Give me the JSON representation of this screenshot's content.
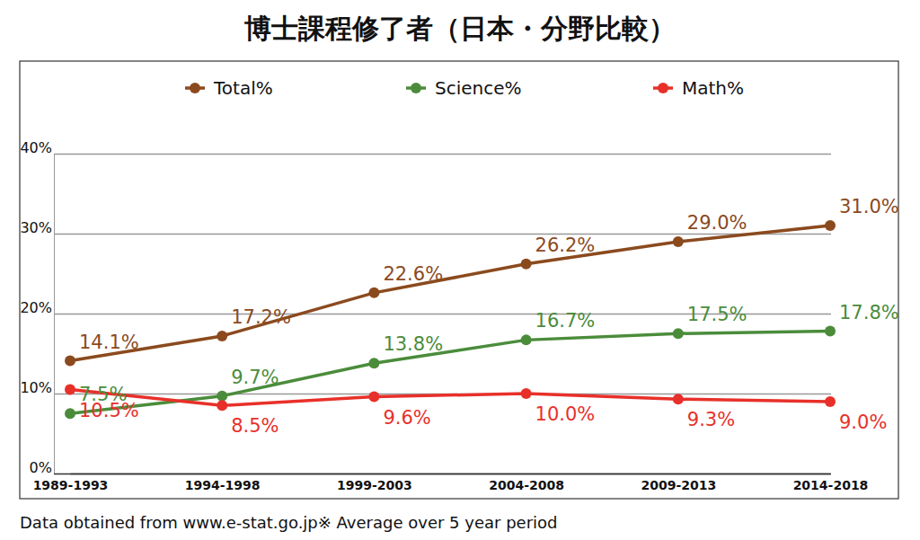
{
  "chart_data": {
    "type": "line",
    "title": "博士課程修了者（日本・分野比較）",
    "categories": [
      "1989-1993",
      "1994-1998",
      "1999-2003",
      "2004-2008",
      "2009-2013",
      "2014-2018"
    ],
    "series": [
      {
        "name": "Total%",
        "color": "#8b4a1e",
        "values": [
          14.1,
          17.2,
          22.6,
          26.2,
          29.0,
          31.0
        ],
        "value_labels": [
          "14.1%",
          "17.2%",
          "22.6%",
          "26.2%",
          "29.0%",
          "31.0%"
        ]
      },
      {
        "name": "Science%",
        "color": "#4b8c3b",
        "values": [
          7.5,
          9.7,
          13.8,
          16.7,
          17.5,
          17.8
        ],
        "value_labels": [
          "7.5%",
          "9.7%",
          "13.8%",
          "16.7%",
          "17.5%",
          "17.8%"
        ]
      },
      {
        "name": "Math%",
        "color": "#e8302a",
        "values": [
          10.5,
          8.5,
          9.6,
          10.0,
          9.3,
          9.0
        ],
        "value_labels": [
          "10.5%",
          "8.5%",
          "9.6%",
          "10.0%",
          "9.3%",
          "9.0%"
        ]
      }
    ],
    "ylim": [
      0,
      40
    ],
    "yticks": [
      {
        "value": 0,
        "label": "0%"
      },
      {
        "value": 10,
        "label": "10%"
      },
      {
        "value": 20,
        "label": "20%"
      },
      {
        "value": 30,
        "label": "30%"
      },
      {
        "value": 40,
        "label": "40%"
      }
    ],
    "grid": true,
    "legend": "top",
    "marker": "circle",
    "data_labels": true,
    "annotations": [
      "Data obtained from www.e-stat.go.jp※  Average over 5 year period"
    ]
  }
}
